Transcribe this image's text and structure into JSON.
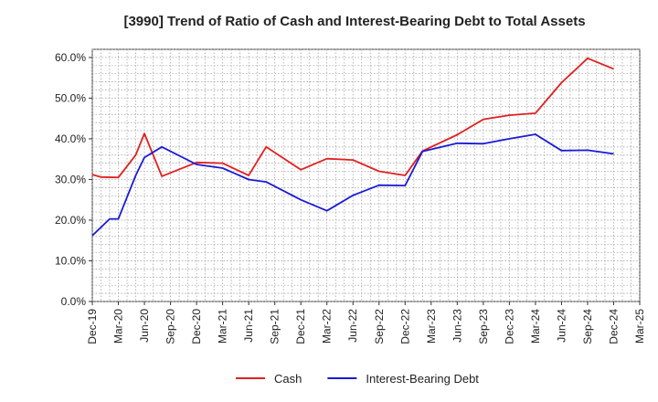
{
  "chart_data": {
    "type": "line",
    "title": "[3990]  Trend of Ratio of Cash and Interest-Bearing Debt to Total Assets",
    "xlabel": "",
    "ylabel": "",
    "ylim": [
      0,
      62
    ],
    "y_ticks": [
      "0.0%",
      "10.0%",
      "20.0%",
      "30.0%",
      "40.0%",
      "50.0%",
      "60.0%"
    ],
    "y_tick_values": [
      0,
      10,
      20,
      30,
      40,
      50,
      60
    ],
    "x_tick_labels": [
      "Dec-19",
      "Mar-20",
      "Jun-20",
      "Sep-20",
      "Dec-20",
      "Mar-21",
      "Jun-21",
      "Sep-21",
      "Dec-21",
      "Mar-22",
      "Jun-22",
      "Sep-22",
      "Dec-22",
      "Mar-23",
      "Jun-23",
      "Sep-23",
      "Dec-23",
      "Mar-24",
      "Jun-24",
      "Sep-24",
      "Dec-24",
      "Mar-25"
    ],
    "grid": true,
    "legend_position": "bottom",
    "series": [
      {
        "name": "Cash",
        "color": "#e02020",
        "x": [
          "Dec-19",
          "Jan-20",
          "Mar-20",
          "May-20",
          "Jun-20",
          "Aug-20",
          "Dec-20",
          "Mar-21",
          "Jun-21",
          "Aug-21",
          "Dec-21",
          "Mar-22",
          "Jun-22",
          "Sep-22",
          "Dec-22",
          "Feb-23",
          "Jun-23",
          "Sep-23",
          "Dec-23",
          "Mar-24",
          "Jun-24",
          "Sep-24",
          "Dec-24"
        ],
        "values": [
          31.2,
          30.6,
          30.5,
          36.0,
          41.3,
          30.8,
          34.2,
          34.0,
          31.0,
          38.0,
          32.4,
          35.1,
          34.8,
          32.0,
          31.0,
          37.0,
          41.0,
          44.8,
          45.8,
          46.3,
          53.8,
          59.8,
          57.2
        ]
      },
      {
        "name": "Interest-Bearing Debt",
        "color": "#1a1ad6",
        "x": [
          "Dec-19",
          "Feb-20",
          "Mar-20",
          "May-20",
          "Jun-20",
          "Aug-20",
          "Dec-20",
          "Mar-21",
          "Jun-21",
          "Aug-21",
          "Dec-21",
          "Mar-22",
          "Jun-22",
          "Sep-22",
          "Dec-22",
          "Feb-23",
          "Jun-23",
          "Sep-23",
          "Dec-23",
          "Mar-24",
          "Jun-24",
          "Sep-24",
          "Dec-24"
        ],
        "values": [
          16.2,
          20.3,
          20.3,
          31.0,
          35.4,
          38.0,
          33.7,
          32.8,
          30.0,
          29.4,
          25.0,
          22.3,
          26.1,
          28.6,
          28.5,
          36.9,
          38.9,
          38.8,
          40.0,
          41.1,
          37.1,
          37.2,
          36.3
        ]
      }
    ]
  }
}
